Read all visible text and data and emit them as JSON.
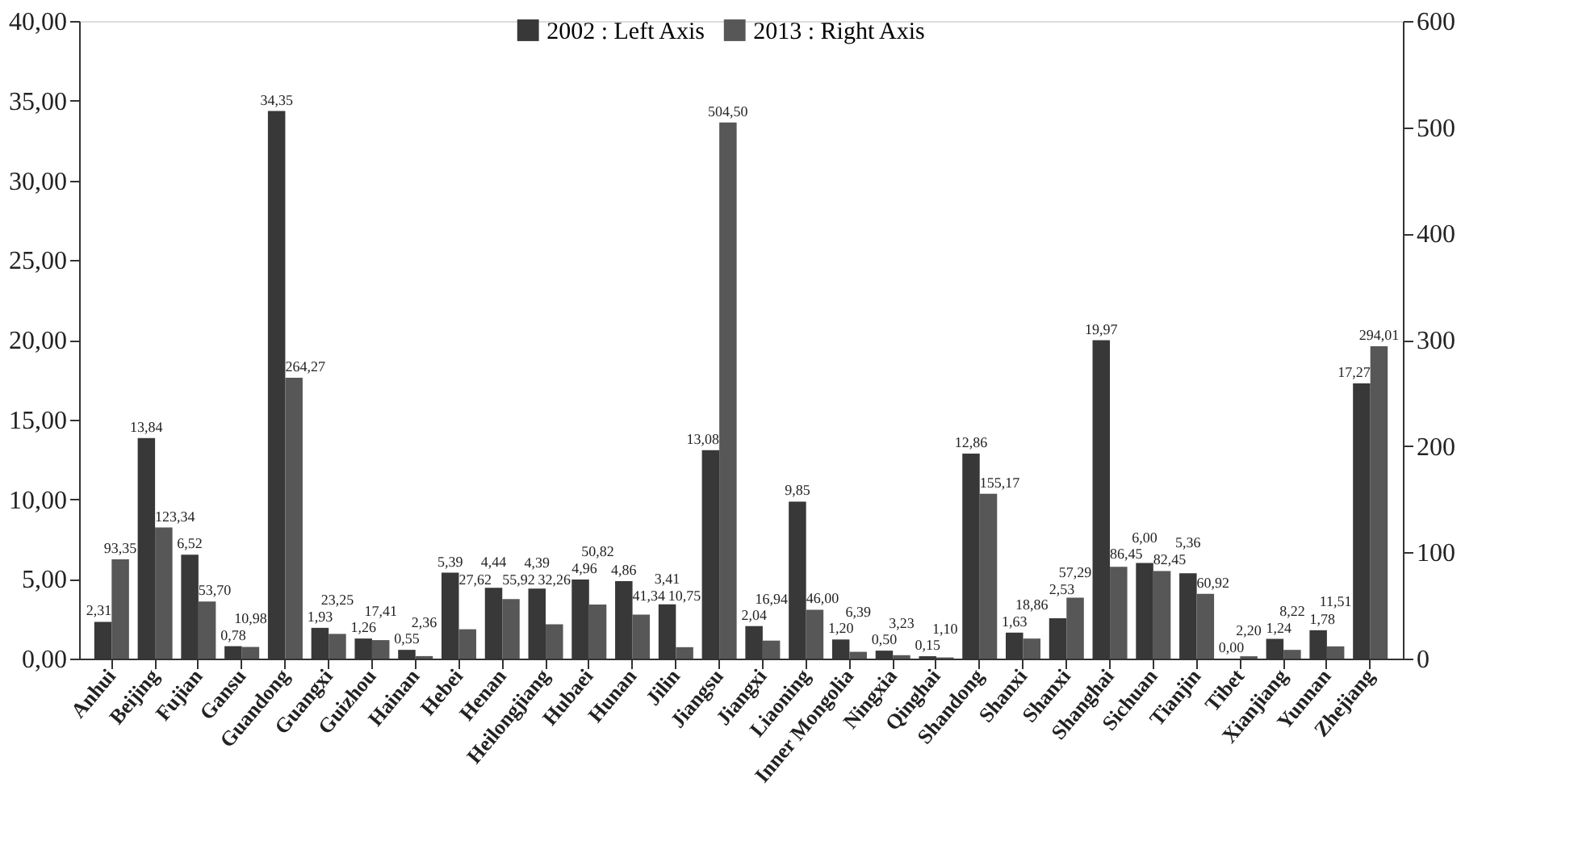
{
  "chart_data": {
    "type": "bar",
    "categories": [
      "Anhui",
      "Beijing",
      "Fujian",
      "Gansu",
      "Guandong",
      "Guangxi",
      "Guizhou",
      "Hainan",
      "Hebei",
      "Henan",
      "Heilongjiang",
      "Hubaei",
      "Hunan",
      "Jilin",
      "Jiangsu",
      "Jiangxi",
      "Liaoning",
      "Inner Mongolia",
      "Ningxia",
      "Qinghai",
      "Shandong",
      "Shanxi",
      "Shanxi",
      "Shanghai",
      "Sichuan",
      "Tianjin",
      "Tibet",
      "Xianjiang",
      "Yunnan",
      "Zhejiang"
    ],
    "series": [
      {
        "name": "2002 : Left Axis",
        "color": "#383838",
        "axis": "y",
        "values": [
          2.31,
          13.84,
          6.52,
          0.78,
          34.35,
          1.93,
          1.26,
          0.55,
          5.39,
          4.44,
          4.39,
          4.96,
          4.86,
          3.41,
          13.08,
          2.04,
          9.85,
          1.2,
          0.5,
          0.15,
          12.86,
          1.63,
          2.53,
          19.97,
          6.0,
          5.36,
          0.0,
          1.24,
          1.78,
          17.27
        ],
        "value_labels": [
          "2,31",
          "13,84",
          "6,52",
          "0,78",
          "34,35",
          "1,93",
          "1,26",
          "0,55",
          "5,39",
          "4,44",
          "4,39",
          "4,96",
          "4,86",
          "3,41",
          "13,08",
          "2,04",
          "9,85",
          "1,20",
          "0,50",
          "0,15",
          "12,86",
          "1,63",
          "2,53",
          "19,97",
          "6,00",
          "5,36",
          "0,00",
          "1,24",
          "1,78",
          "17,27"
        ]
      },
      {
        "name": "2013 : Right Axis",
        "color": "#575757",
        "axis": "y2",
        "values": [
          93.35,
          123.34,
          53.7,
          10.98,
          264.27,
          23.25,
          17.41,
          2.36,
          27.62,
          55.92,
          32.26,
          50.82,
          41.34,
          10.75,
          504.5,
          16.94,
          46.0,
          6.39,
          3.23,
          1.1,
          155.17,
          18.86,
          57.29,
          86.45,
          82.45,
          60.92,
          2.2,
          8.22,
          11.51,
          294.01
        ],
        "value_labels": [
          "93,35",
          "123,34",
          "53,70",
          "10,98",
          "264,27",
          "23,25",
          "17,41",
          "2,36",
          "27,62",
          "55,92",
          "32,26",
          "50,82",
          "41,34",
          "10,75",
          "504,50",
          "16,94",
          "46,00",
          "6,39",
          "3,23",
          "1,10",
          "155,17",
          "18,86",
          "57,29",
          "86,45",
          "82,45",
          "60,92",
          "2,20",
          "8,22",
          "11,51",
          "294,01"
        ]
      }
    ],
    "ylim": [
      0,
      40
    ],
    "yticks": [
      {
        "value": 0,
        "label": "0,00"
      },
      {
        "value": 5,
        "label": "5,00"
      },
      {
        "value": 10,
        "label": "10,00"
      },
      {
        "value": 15,
        "label": "15,00"
      },
      {
        "value": 20,
        "label": "20,00"
      },
      {
        "value": 25,
        "label": "25,00"
      },
      {
        "value": 30,
        "label": "30,00"
      },
      {
        "value": 35,
        "label": "35,00"
      },
      {
        "value": 40,
        "label": "40,00"
      }
    ],
    "y2lim": [
      0,
      600
    ],
    "y2ticks": [
      0,
      100,
      200,
      300,
      400,
      500,
      600
    ],
    "legend": "top",
    "grid": false
  }
}
